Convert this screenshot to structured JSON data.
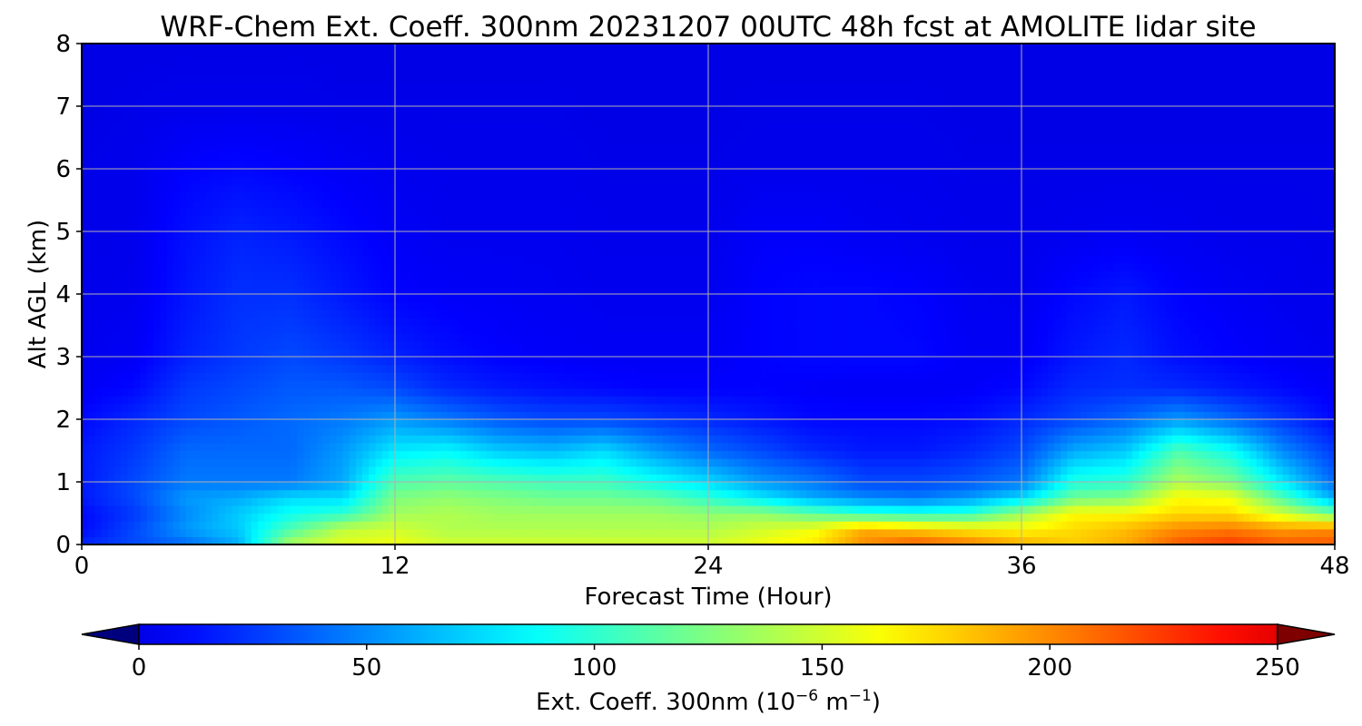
{
  "chart_data": {
    "type": "heatmap",
    "title": "WRF-Chem Ext. Coeff. 300nm  20231207 00UTC 48h fcst at AMOLITE lidar site",
    "xlabel": "Forecast Time (Hour)",
    "ylabel": "Alt AGL (km)",
    "xlim": [
      0,
      48
    ],
    "ylim": [
      0,
      8
    ],
    "xticks": [
      0,
      12,
      24,
      36,
      48
    ],
    "yticks": [
      0,
      1,
      2,
      3,
      4,
      5,
      6,
      7,
      8
    ],
    "grid": true,
    "colormap": "jet",
    "colorbar": {
      "label_main": "Ext. Coeff. 300nm  (10",
      "exp1": "−6",
      "label_mid": " m",
      "exp2": "−1",
      "label_end": ")",
      "range": [
        0,
        250
      ],
      "ticks": [
        0,
        50,
        100,
        150,
        200,
        250
      ],
      "extend": "both",
      "orientation": "horizontal",
      "location": "bottom"
    },
    "x_hours": [
      0,
      2,
      4,
      6,
      8,
      10,
      12,
      14,
      16,
      18,
      20,
      22,
      24,
      26,
      28,
      30,
      32,
      34,
      36,
      38,
      40,
      42,
      44,
      46,
      48
    ],
    "y_km": [
      0,
      0.25,
      0.5,
      0.75,
      1.0,
      1.5,
      2.0,
      2.5,
      3.0,
      4.0,
      5.0,
      6.0,
      7.0,
      8.0
    ],
    "values": [
      [
        20,
        30,
        40,
        60,
        140,
        155,
        160,
        150,
        150,
        150,
        150,
        150,
        150,
        160,
        170,
        200,
        215,
        205,
        190,
        180,
        190,
        215,
        225,
        215,
        215
      ],
      [
        10,
        30,
        55,
        70,
        110,
        145,
        150,
        140,
        140,
        140,
        140,
        140,
        140,
        150,
        160,
        190,
        180,
        170,
        165,
        175,
        185,
        200,
        205,
        195,
        200
      ],
      [
        10,
        25,
        50,
        70,
        90,
        100,
        135,
        140,
        135,
        135,
        135,
        135,
        130,
        130,
        115,
        100,
        95,
        100,
        135,
        165,
        165,
        175,
        175,
        150,
        120
      ],
      [
        15,
        30,
        55,
        60,
        75,
        75,
        125,
        130,
        125,
        120,
        120,
        115,
        100,
        80,
        60,
        50,
        45,
        55,
        75,
        120,
        125,
        165,
        160,
        110,
        60
      ],
      [
        15,
        30,
        45,
        45,
        45,
        60,
        110,
        115,
        110,
        105,
        105,
        90,
        75,
        55,
        45,
        30,
        30,
        35,
        45,
        95,
        100,
        140,
        125,
        80,
        40
      ],
      [
        15,
        25,
        40,
        40,
        40,
        55,
        80,
        85,
        70,
        65,
        75,
        55,
        40,
        30,
        20,
        15,
        15,
        20,
        30,
        60,
        70,
        110,
        90,
        50,
        25
      ],
      [
        10,
        20,
        30,
        35,
        40,
        45,
        55,
        45,
        35,
        30,
        30,
        25,
        20,
        15,
        10,
        10,
        10,
        12,
        20,
        30,
        40,
        55,
        40,
        25,
        10
      ],
      [
        5,
        10,
        25,
        30,
        35,
        35,
        30,
        20,
        15,
        12,
        10,
        8,
        8,
        8,
        6,
        5,
        5,
        6,
        10,
        20,
        22,
        20,
        15,
        10,
        5
      ],
      [
        3,
        5,
        18,
        25,
        30,
        25,
        18,
        12,
        8,
        6,
        5,
        5,
        5,
        8,
        10,
        10,
        10,
        5,
        5,
        15,
        20,
        12,
        8,
        5,
        3
      ],
      [
        2,
        3,
        14,
        22,
        22,
        15,
        8,
        6,
        5,
        4,
        3,
        3,
        3,
        8,
        10,
        10,
        8,
        4,
        3,
        10,
        15,
        8,
        5,
        3,
        2
      ],
      [
        1,
        2,
        12,
        18,
        15,
        10,
        5,
        3,
        3,
        3,
        2,
        2,
        2,
        6,
        6,
        4,
        3,
        2,
        2,
        3,
        4,
        3,
        2,
        2,
        1
      ],
      [
        1,
        2,
        8,
        10,
        8,
        5,
        3,
        2,
        2,
        2,
        1,
        1,
        1,
        2,
        2,
        2,
        2,
        1,
        1,
        1,
        1,
        1,
        1,
        1,
        1
      ],
      [
        0,
        1,
        2,
        2,
        2,
        1,
        1,
        1,
        1,
        1,
        0,
        0,
        0,
        1,
        1,
        1,
        1,
        0,
        0,
        0,
        0,
        0,
        0,
        0,
        0
      ],
      [
        0,
        0,
        0,
        0,
        0,
        0,
        0,
        0,
        0,
        0,
        0,
        0,
        0,
        0,
        0,
        0,
        0,
        0,
        0,
        0,
        0,
        0,
        0,
        0,
        0
      ]
    ]
  }
}
